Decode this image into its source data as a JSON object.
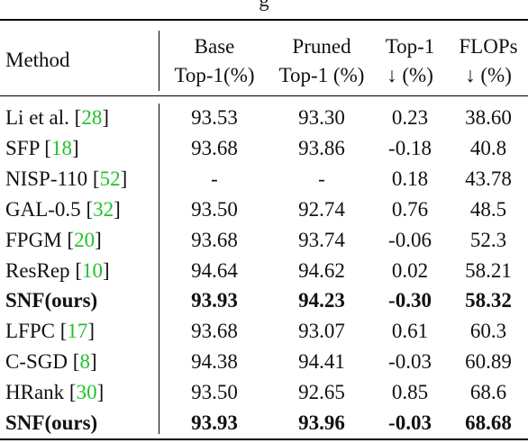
{
  "caption_fragment": "g",
  "header": {
    "method": "Method",
    "base_line1": "Base",
    "base_line2": "Top-1(%)",
    "pruned_line1": "Pruned",
    "pruned_line2": "Top-1 (%)",
    "top1_drop_line1": "Top-1",
    "top1_drop_line2": "↓ (%)",
    "flops_line1": "FLOPs",
    "flops_line2": "↓ (%)"
  },
  "rows": [
    {
      "method": "Li et al. ",
      "cite": "28",
      "base": "93.53",
      "pruned": "93.30",
      "drop": "0.23",
      "flops": "38.60",
      "bold": false
    },
    {
      "method": "SFP ",
      "cite": "18",
      "base": "93.68",
      "pruned": "93.86",
      "drop": "-0.18",
      "flops": "40.8",
      "bold": false
    },
    {
      "method": "NISP-110 ",
      "cite": "52",
      "base": "-",
      "pruned": "-",
      "drop": "0.18",
      "flops": "43.78",
      "bold": false
    },
    {
      "method": "GAL-0.5 ",
      "cite": "32",
      "base": "93.50",
      "pruned": "92.74",
      "drop": "0.76",
      "flops": "48.5",
      "bold": false
    },
    {
      "method": "FPGM ",
      "cite": "20",
      "base": "93.68",
      "pruned": "93.74",
      "drop": "-0.06",
      "flops": "52.3",
      "bold": false
    },
    {
      "method": "ResRep ",
      "cite": "10",
      "base": "94.64",
      "pruned": "94.62",
      "drop": "0.02",
      "flops": "58.21",
      "bold": false
    },
    {
      "method": "SNF(ours)",
      "cite": "",
      "base": "93.93",
      "pruned": "94.23",
      "drop": "-0.30",
      "flops": "58.32",
      "bold": true
    },
    {
      "method": "LFPC ",
      "cite": "17",
      "base": "93.68",
      "pruned": "93.07",
      "drop": "0.61",
      "flops": "60.3",
      "bold": false
    },
    {
      "method": "C-SGD ",
      "cite": "8",
      "base": "94.38",
      "pruned": "94.41",
      "drop": "-0.03",
      "flops": "60.89",
      "bold": false
    },
    {
      "method": "HRank ",
      "cite": "30",
      "base": "93.50",
      "pruned": "92.65",
      "drop": "0.85",
      "flops": "68.6",
      "bold": false
    },
    {
      "method": "SNF(ours)",
      "cite": "",
      "base": "93.93",
      "pruned": "93.96",
      "drop": "-0.03",
      "flops": "68.68",
      "bold": true
    }
  ]
}
